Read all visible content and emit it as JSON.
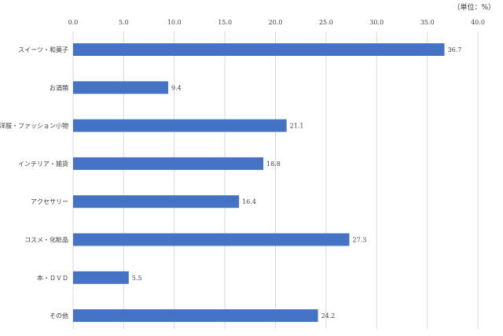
{
  "unit_label": "（単位：%）",
  "colors": {
    "bar": "#4472C4",
    "grid": "#d9d9d9",
    "text": "#404040"
  },
  "chart_data": {
    "type": "bar",
    "orientation": "horizontal",
    "categories": [
      "スイーツ・和菓子",
      "お酒類",
      "洋服・ファッション小物",
      "インテリア・雑貨",
      "アクセサリー",
      "コスメ・化粧品",
      "本・ＤＶＤ",
      "その他"
    ],
    "values": [
      36.7,
      9.4,
      21.1,
      18.8,
      16.4,
      27.3,
      5.5,
      24.2
    ],
    "x_ticks": [
      "0.0",
      "5.0",
      "10.0",
      "15.0",
      "20.0",
      "25.0",
      "30.0",
      "35.0",
      "40.0"
    ],
    "xlim": [
      0,
      40
    ],
    "grid": true,
    "axis_position": "top",
    "legend": "none",
    "data_labels": true
  }
}
